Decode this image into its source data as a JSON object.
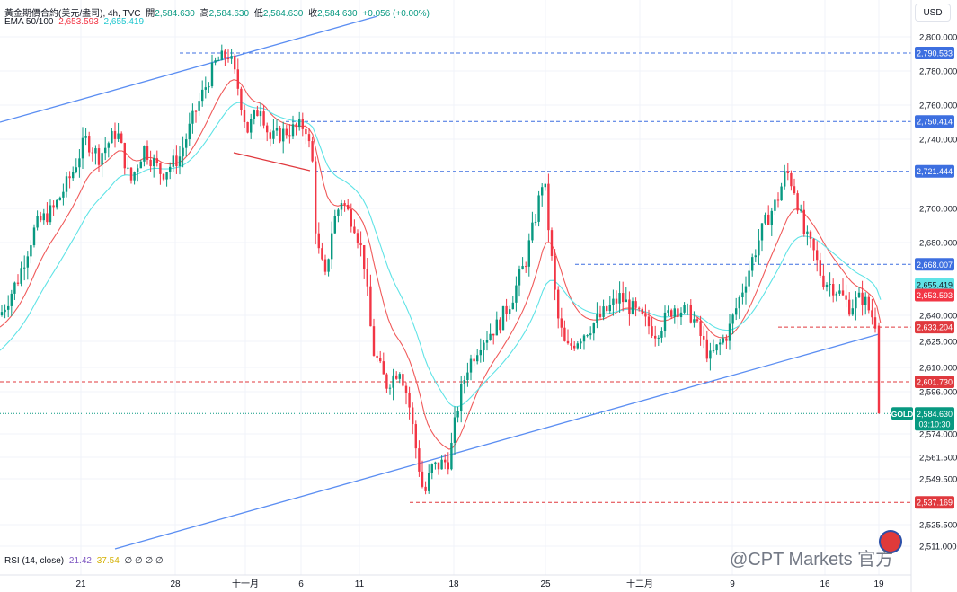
{
  "header": {
    "symbol_title": "黃金期價合約(美元/盎司), 4h, TVC",
    "ohlc": [
      {
        "label": "開",
        "value": "2,584.630"
      },
      {
        "label": "高",
        "value": "2,584.630"
      },
      {
        "label": "低",
        "value": "2,584.630"
      },
      {
        "label": "收",
        "value": "2,584.630"
      }
    ],
    "change": "+0.056 (+0.00%)",
    "ema_label": "EMA 50/100",
    "ema50_value": "2,653.593",
    "ema100_value": "2,655.419"
  },
  "currency_button": "USD",
  "rsi": {
    "label": "RSI (14, close)",
    "value1": "21.42",
    "value2": "37.54",
    "extra": "∅ ∅ ∅ ∅"
  },
  "watermark": "@CPT Markets 官方",
  "colors": {
    "up": "#089981",
    "down": "#f23645",
    "blue_line": "#5b8ef2",
    "ema50": "#f05a5a",
    "ema100": "#5fe3e6",
    "grid": "#f0f3fa",
    "price_tag": "#089981"
  },
  "chart_data": {
    "type": "candlestick",
    "symbol_label": "GOLD",
    "last_price": "2,584.630",
    "countdown": "03:10:30",
    "y_axis_ticks": [
      "2,800.000",
      "2,780.000",
      "2,760.000",
      "2,740.000",
      "2,700.000",
      "2,680.000",
      "2,640.000",
      "2,625.000",
      "2,610.000",
      "2,596.000",
      "2,574.000",
      "2,561.500",
      "2,549.500",
      "2,525.500",
      "2,511.000"
    ],
    "x_axis_ticks": [
      "21",
      "28",
      "十一月",
      "6",
      "11",
      "18",
      "25",
      "十二月",
      "9",
      "16",
      "19"
    ],
    "ylim": [
      2511,
      2800
    ],
    "horizontal_levels": [
      {
        "value": "2,790.533",
        "color": "blue"
      },
      {
        "value": "2,750.414",
        "color": "blue"
      },
      {
        "value": "2,721.444",
        "color": "blue"
      },
      {
        "value": "2,668.007",
        "color": "blue"
      },
      {
        "value": "2,633.204",
        "color": "red"
      },
      {
        "value": "2,601.730",
        "color": "red"
      },
      {
        "value": "2,537.169",
        "color": "red"
      }
    ],
    "ema_tags": [
      {
        "name": "EMA 100",
        "value": "2,655.419"
      },
      {
        "name": "EMA 50",
        "value": "2,653.593"
      }
    ],
    "price_path": [
      [
        0,
        2640
      ],
      [
        20,
        2660
      ],
      [
        40,
        2690
      ],
      [
        60,
        2700
      ],
      [
        80,
        2720
      ],
      [
        95,
        2740
      ],
      [
        110,
        2730
      ],
      [
        130,
        2745
      ],
      [
        145,
        2715
      ],
      [
        160,
        2735
      ],
      [
        180,
        2720
      ],
      [
        200,
        2730
      ],
      [
        220,
        2760
      ],
      [
        240,
        2785
      ],
      [
        255,
        2790
      ],
      [
        265,
        2770
      ],
      [
        275,
        2745
      ],
      [
        290,
        2760
      ],
      [
        300,
        2740
      ],
      [
        320,
        2745
      ],
      [
        340,
        2748
      ],
      [
        348,
        2725
      ],
      [
        352,
        2680
      ],
      [
        362,
        2660
      ],
      [
        370,
        2690
      ],
      [
        380,
        2705
      ],
      [
        395,
        2690
      ],
      [
        405,
        2670
      ],
      [
        415,
        2620
      ],
      [
        430,
        2600
      ],
      [
        445,
        2610
      ],
      [
        455,
        2590
      ],
      [
        465,
        2560
      ],
      [
        472,
        2540
      ],
      [
        480,
        2555
      ],
      [
        500,
        2560
      ],
      [
        510,
        2590
      ],
      [
        520,
        2610
      ],
      [
        535,
        2625
      ],
      [
        555,
        2635
      ],
      [
        570,
        2650
      ],
      [
        585,
        2670
      ],
      [
        598,
        2700
      ],
      [
        605,
        2720
      ],
      [
        612,
        2680
      ],
      [
        620,
        2640
      ],
      [
        630,
        2620
      ],
      [
        650,
        2630
      ],
      [
        670,
        2640
      ],
      [
        690,
        2650
      ],
      [
        710,
        2640
      ],
      [
        730,
        2630
      ],
      [
        750,
        2645
      ],
      [
        770,
        2640
      ],
      [
        790,
        2615
      ],
      [
        810,
        2630
      ],
      [
        830,
        2660
      ],
      [
        850,
        2690
      ],
      [
        865,
        2705
      ],
      [
        875,
        2722
      ],
      [
        885,
        2710
      ],
      [
        895,
        2685
      ],
      [
        905,
        2675
      ],
      [
        915,
        2660
      ],
      [
        930,
        2655
      ],
      [
        945,
        2645
      ],
      [
        960,
        2650
      ],
      [
        975,
        2635
      ],
      [
        978,
        2584.63
      ]
    ]
  }
}
